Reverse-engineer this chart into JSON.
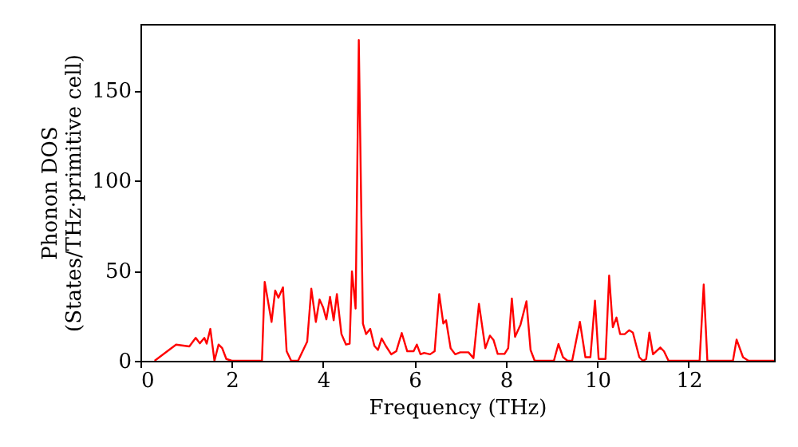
{
  "chart_data": {
    "type": "line",
    "xlabel": "Frequency (THz)",
    "ylabel": "Phonon DOS\n(States/THz·primitive cell)",
    "xlim": [
      0,
      13.87
    ],
    "ylim": [
      0,
      187
    ],
    "xticks": [
      0,
      2,
      4,
      6,
      8,
      10,
      12
    ],
    "yticks": [
      0,
      50,
      100,
      150
    ],
    "grid": false,
    "marker": "none",
    "line_style": "solid",
    "series": [
      {
        "color": "#ff0000",
        "x": [
          0.31,
          0.78,
          1.07,
          1.21,
          1.3,
          1.4,
          1.45,
          1.53,
          1.62,
          1.71,
          1.79,
          1.88,
          2.0,
          2.66,
          2.72,
          2.87,
          2.95,
          3.02,
          3.12,
          3.2,
          3.3,
          3.45,
          3.65,
          3.74,
          3.84,
          3.92,
          4.0,
          4.07,
          4.15,
          4.23,
          4.3,
          4.4,
          4.5,
          4.58,
          4.63,
          4.71,
          4.78,
          4.87,
          4.94,
          5.03,
          5.12,
          5.2,
          5.28,
          5.37,
          5.49,
          5.6,
          5.72,
          5.84,
          5.98,
          6.05,
          6.13,
          6.21,
          6.34,
          6.44,
          6.54,
          6.63,
          6.69,
          6.79,
          6.89,
          7.0,
          7.18,
          7.29,
          7.41,
          7.55,
          7.65,
          7.73,
          7.82,
          7.97,
          8.05,
          8.13,
          8.2,
          8.32,
          8.45,
          8.54,
          8.63,
          9.05,
          9.15,
          9.25,
          9.35,
          9.45,
          9.62,
          9.74,
          9.85,
          9.95,
          10.03,
          10.18,
          10.26,
          10.34,
          10.42,
          10.5,
          10.6,
          10.7,
          10.78,
          10.92,
          11.0,
          11.07,
          11.14,
          11.22,
          11.38,
          11.46,
          11.56,
          12.24,
          12.33,
          12.41,
          12.97,
          13.05,
          13.19,
          13.31,
          13.87
        ],
        "values": [
          0,
          9,
          8,
          12.7,
          9.7,
          12.7,
          9.5,
          17.7,
          0,
          9,
          7,
          1,
          0,
          0,
          43.8,
          21.6,
          39,
          35,
          40.8,
          5.3,
          0,
          0,
          10.6,
          40,
          21.6,
          34,
          29.6,
          23,
          35.5,
          22.5,
          37,
          14.8,
          9,
          9.5,
          49.7,
          29,
          178,
          20.7,
          14.8,
          17.7,
          8.3,
          6,
          12.4,
          8.3,
          3.6,
          5.3,
          15.4,
          5.3,
          5.3,
          9,
          3.6,
          4.4,
          3.6,
          5.3,
          37,
          20.7,
          22.5,
          7,
          3.6,
          4.7,
          4.7,
          1.5,
          31.6,
          7,
          14,
          11.5,
          3.8,
          3.8,
          7,
          34.6,
          13.3,
          20.1,
          33,
          6,
          0,
          0,
          9.3,
          2,
          0,
          0,
          21.6,
          2,
          2,
          33.4,
          1,
          1,
          47.3,
          18.6,
          24,
          14.8,
          14.8,
          17,
          15.6,
          2,
          0,
          1,
          15.6,
          3.6,
          7.4,
          5.3,
          0,
          0,
          42.3,
          0,
          0,
          11.8,
          2,
          0,
          0
        ]
      }
    ]
  }
}
